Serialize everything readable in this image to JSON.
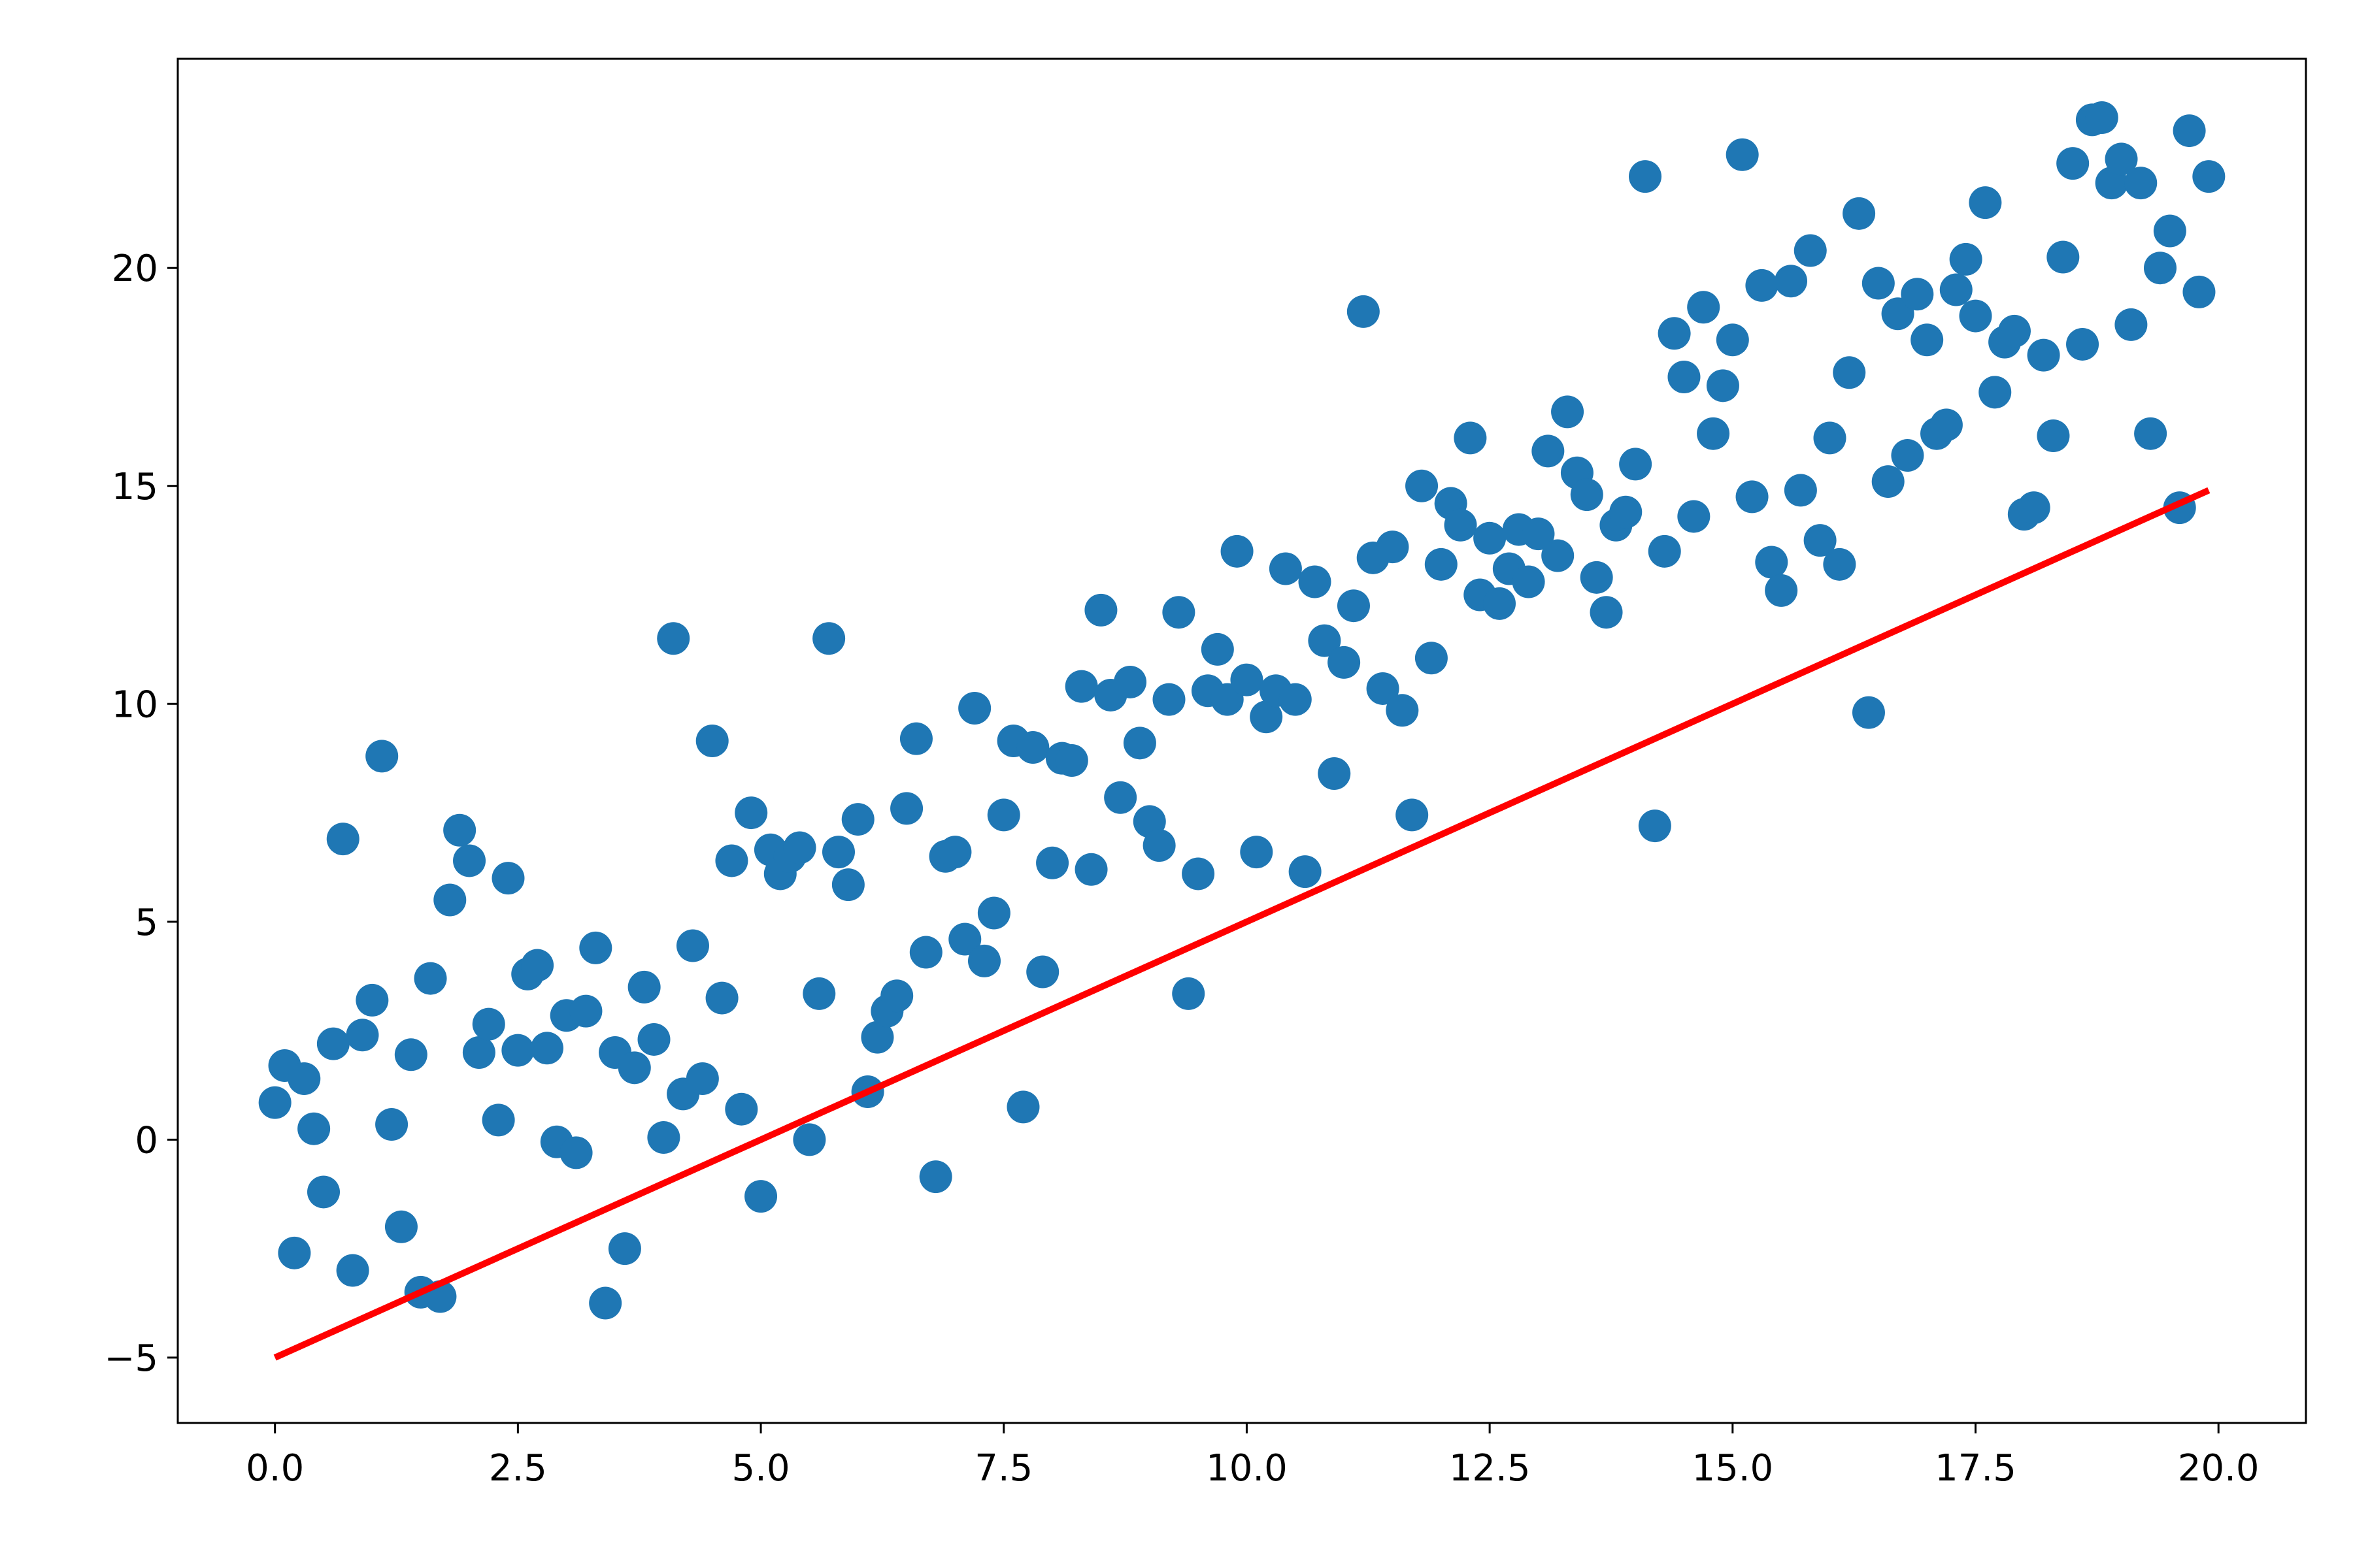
{
  "chart_data": {
    "type": "scatter",
    "title": "",
    "xlabel": "",
    "ylabel": "",
    "xlim": [
      -1.0,
      20.9
    ],
    "ylim": [
      -6.5,
      24.8
    ],
    "grid": false,
    "legend": "none",
    "x_ticks": [
      0.0,
      2.5,
      5.0,
      7.5,
      10.0,
      12.5,
      15.0,
      17.5,
      20.0
    ],
    "x_tick_labels": [
      "0.0",
      "2.5",
      "5.0",
      "7.5",
      "10.0",
      "12.5",
      "15.0",
      "17.5",
      "20.0"
    ],
    "y_ticks": [
      -5,
      0,
      5,
      10,
      15,
      20
    ],
    "y_tick_labels": [
      "−5",
      "0",
      "5",
      "10",
      "15",
      "20"
    ],
    "colors": {
      "points": "#1f77b4",
      "line": "#ff0000"
    },
    "series": [
      {
        "kind": "scatter",
        "x": [
          0.0,
          0.1,
          0.2,
          0.3,
          0.4,
          0.5,
          0.6,
          0.7,
          0.8,
          0.9,
          1.0,
          1.1,
          1.2,
          1.3,
          1.4,
          1.5,
          1.6,
          1.7,
          1.8,
          1.9,
          2.0,
          2.1,
          2.2,
          2.3,
          2.4,
          2.5,
          2.6,
          2.7,
          2.8,
          2.9,
          3.0,
          3.1,
          3.2,
          3.3,
          3.4,
          3.5,
          3.6,
          3.7,
          3.8,
          3.9,
          4.0,
          4.1,
          4.2,
          4.3,
          4.4,
          4.5,
          4.6,
          4.7,
          4.8,
          4.9,
          5.0,
          5.1,
          5.2,
          5.3,
          5.4,
          5.5,
          5.6,
          5.7,
          5.8,
          5.9,
          6.0,
          6.1,
          6.2,
          6.3,
          6.4,
          6.5,
          6.6,
          6.7,
          6.8,
          6.9,
          7.0,
          7.1,
          7.2,
          7.3,
          7.4,
          7.5,
          7.6,
          7.7,
          7.8,
          7.9,
          8.0,
          8.1,
          8.2,
          8.3,
          8.4,
          8.5,
          8.6,
          8.7,
          8.8,
          8.9,
          9.0,
          9.1,
          9.2,
          9.3,
          9.4,
          9.5,
          9.6,
          9.7,
          9.8,
          9.9,
          10.0,
          10.1,
          10.2,
          10.3,
          10.4,
          10.5,
          10.6,
          10.7,
          10.8,
          10.9,
          11.0,
          11.1,
          11.2,
          11.3,
          11.4,
          11.5,
          11.6,
          11.7,
          11.8,
          11.9,
          12.0,
          12.1,
          12.2,
          12.3,
          12.4,
          12.5,
          12.6,
          12.7,
          12.8,
          12.9,
          13.0,
          13.1,
          13.2,
          13.3,
          13.4,
          13.5,
          13.6,
          13.7,
          13.8,
          13.9,
          14.0,
          14.1,
          14.2,
          14.3,
          14.4,
          14.5,
          14.6,
          14.7,
          14.8,
          14.9,
          15.0,
          15.1,
          15.2,
          15.3,
          15.4,
          15.5,
          15.6,
          15.7,
          15.8,
          15.9,
          16.0,
          16.1,
          16.2,
          16.3,
          16.4,
          16.5,
          16.6,
          16.7,
          16.8,
          16.9,
          17.0,
          17.1,
          17.2,
          17.3,
          17.4,
          17.5,
          17.6,
          17.7,
          17.8,
          17.9,
          18.0,
          18.1,
          18.2,
          18.3,
          18.4,
          18.5,
          18.6,
          18.7,
          18.8,
          18.9,
          19.0,
          19.1,
          19.2,
          19.3,
          19.4,
          19.5,
          19.6,
          19.7,
          19.8,
          19.9
        ],
        "y": [
          0.85,
          1.7,
          -2.6,
          1.4,
          0.25,
          -1.2,
          2.2,
          6.9,
          -3.0,
          2.4,
          3.2,
          8.8,
          0.35,
          -2.0,
          1.95,
          -3.5,
          3.7,
          -3.6,
          5.5,
          7.1,
          6.4,
          2.0,
          2.65,
          0.45,
          6.0,
          2.05,
          3.8,
          4.0,
          2.1,
          -0.05,
          2.85,
          -0.3,
          2.95,
          4.4,
          -3.75,
          2.0,
          -2.5,
          1.65,
          3.5,
          2.3,
          0.05,
          11.5,
          1.05,
          4.45,
          1.4,
          9.15,
          3.25,
          6.4,
          0.7,
          7.5,
          -1.3,
          6.65,
          6.1,
          6.5,
          6.7,
          0.0,
          3.35,
          11.5,
          6.6,
          5.85,
          7.35,
          1.1,
          2.35,
          2.95,
          3.3,
          7.6,
          9.2,
          4.3,
          -0.85,
          6.5,
          6.6,
          4.6,
          9.9,
          4.1,
          5.2,
          7.45,
          9.15,
          0.75,
          9.0,
          3.85,
          6.35,
          8.75,
          8.7,
          10.4,
          6.2,
          12.15,
          10.2,
          7.85,
          10.5,
          9.1,
          7.3,
          6.75,
          10.1,
          12.1,
          3.35,
          6.1,
          10.3,
          11.25,
          10.1,
          13.5,
          10.55,
          6.6,
          9.7,
          10.3,
          13.1,
          10.1,
          6.15,
          12.8,
          11.45,
          8.4,
          10.95,
          12.25,
          19.0,
          13.35,
          10.35,
          13.6,
          9.85,
          7.45,
          15.0,
          11.05,
          13.2,
          14.6,
          14.1,
          16.1,
          12.5,
          13.8,
          12.3,
          13.1,
          14.0,
          12.8,
          13.9,
          15.8,
          13.4,
          16.7,
          15.3,
          14.8,
          12.9,
          12.1,
          14.1,
          14.4,
          15.5,
          22.1,
          7.2,
          13.5,
          18.5,
          17.5,
          14.3,
          19.1,
          16.2,
          17.3,
          18.35,
          22.6,
          14.75,
          19.6,
          13.25,
          12.6,
          19.7,
          14.9,
          20.4,
          13.75,
          16.1,
          13.2,
          17.6,
          21.25,
          9.8,
          19.65,
          15.1,
          18.95,
          15.7,
          19.4,
          18.35,
          16.2,
          16.4,
          19.5,
          20.2,
          18.9,
          21.5,
          17.15,
          18.3,
          18.55,
          14.35,
          14.5,
          18.0,
          16.15,
          20.25,
          22.4,
          18.25,
          23.4,
          23.45,
          21.95,
          22.5,
          18.7,
          21.95,
          16.2,
          20.0,
          20.85,
          14.5,
          23.15,
          19.45,
          22.1
        ]
      },
      {
        "kind": "line",
        "x": [
          0.0,
          19.9
        ],
        "y": [
          -5.0,
          14.9
        ]
      }
    ]
  }
}
